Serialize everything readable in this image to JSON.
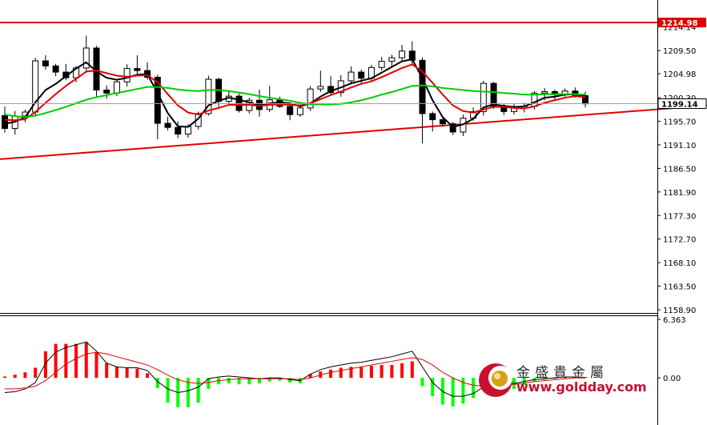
{
  "chart_data": [
    {
      "type": "candlestick",
      "title": "",
      "ylim": [
        1158.9,
        1217.5
      ],
      "y_ticks": [
        "1214.14",
        "1209.50",
        "1204.98",
        "1200.30",
        "1195.70",
        "1191.10",
        "1186.50",
        "1181.90",
        "1177.30",
        "1172.70",
        "1168.10",
        "1163.50",
        "1158.90"
      ],
      "y_tick_values": [
        1214.14,
        1209.5,
        1204.98,
        1200.3,
        1195.7,
        1191.1,
        1186.5,
        1181.9,
        1177.3,
        1172.7,
        1168.1,
        1163.5,
        1158.9
      ],
      "resistance_level": 1214.98,
      "resistance_label": "1214.98",
      "current_price": 1199.14,
      "current_price_label": "1199.14",
      "grid": false,
      "trendline": {
        "start": [
          0,
          1188.3
        ],
        "end": [
          112,
          1205.3
        ],
        "color": "#e00000"
      },
      "candles": [
        [
          1196.8,
          1198.6,
          1193.5,
          1194.3
        ],
        [
          1194.3,
          1197.7,
          1193.1,
          1196.7
        ],
        [
          1196.7,
          1198.0,
          1195.5,
          1197.5
        ],
        [
          1197.5,
          1208.1,
          1196.6,
          1207.5
        ],
        [
          1207.5,
          1208.6,
          1205.8,
          1206.5
        ],
        [
          1206.5,
          1206.9,
          1204.5,
          1205.3
        ],
        [
          1205.3,
          1206.9,
          1203.7,
          1204.2
        ],
        [
          1204.2,
          1206.5,
          1203.3,
          1206.1
        ],
        [
          1206.1,
          1212.4,
          1205.2,
          1210.0
        ],
        [
          1210.0,
          1210.4,
          1200.5,
          1201.8
        ],
        [
          1201.8,
          1202.7,
          1200.1,
          1201.2
        ],
        [
          1201.2,
          1203.8,
          1200.6,
          1203.4
        ],
        [
          1203.4,
          1206.8,
          1202.5,
          1206.0
        ],
        [
          1206.0,
          1208.6,
          1205.0,
          1205.6
        ],
        [
          1205.6,
          1207.2,
          1203.8,
          1204.3
        ],
        [
          1204.3,
          1204.8,
          1192.2,
          1195.3
        ],
        [
          1195.3,
          1196.6,
          1193.9,
          1194.5
        ],
        [
          1194.5,
          1195.7,
          1192.4,
          1193.2
        ],
        [
          1193.2,
          1195.1,
          1192.5,
          1194.7
        ],
        [
          1194.7,
          1197.6,
          1194.1,
          1197.2
        ],
        [
          1197.2,
          1204.6,
          1196.8,
          1203.9
        ],
        [
          1203.9,
          1204.2,
          1198.5,
          1199.6
        ],
        [
          1199.6,
          1201.7,
          1199.1,
          1200.6
        ],
        [
          1200.6,
          1201.1,
          1197.4,
          1197.8
        ],
        [
          1197.8,
          1200.3,
          1197.2,
          1199.8
        ],
        [
          1199.8,
          1201.9,
          1196.6,
          1198.0
        ],
        [
          1198.0,
          1202.6,
          1197.5,
          1199.9
        ],
        [
          1199.9,
          1200.5,
          1198.3,
          1198.6
        ],
        [
          1198.6,
          1199.4,
          1195.9,
          1197.0
        ],
        [
          1197.0,
          1198.7,
          1196.6,
          1198.3
        ],
        [
          1198.3,
          1202.6,
          1197.7,
          1202.0
        ],
        [
          1202.0,
          1205.6,
          1201.4,
          1202.5
        ],
        [
          1202.5,
          1204.5,
          1200.7,
          1201.3
        ],
        [
          1201.3,
          1204.7,
          1200.5,
          1203.6
        ],
        [
          1203.6,
          1206.4,
          1203.0,
          1205.3
        ],
        [
          1205.3,
          1205.8,
          1203.2,
          1204.1
        ],
        [
          1204.1,
          1206.7,
          1203.6,
          1206.2
        ],
        [
          1206.2,
          1208.3,
          1205.6,
          1207.4
        ],
        [
          1207.4,
          1208.7,
          1206.2,
          1208.1
        ],
        [
          1208.1,
          1210.6,
          1207.4,
          1209.4
        ],
        [
          1209.4,
          1211.3,
          1206.8,
          1207.6
        ],
        [
          1207.6,
          1208.2,
          1191.4,
          1197.2
        ],
        [
          1197.2,
          1197.6,
          1193.7,
          1196.0
        ],
        [
          1196.0,
          1196.6,
          1194.6,
          1195.2
        ],
        [
          1195.2,
          1195.6,
          1193.0,
          1193.6
        ],
        [
          1193.6,
          1197.0,
          1192.8,
          1196.3
        ],
        [
          1196.3,
          1198.4,
          1195.8,
          1197.6
        ],
        [
          1197.6,
          1203.6,
          1196.8,
          1203.1
        ],
        [
          1203.1,
          1203.4,
          1198.1,
          1198.5
        ],
        [
          1198.5,
          1199.2,
          1196.9,
          1197.6
        ],
        [
          1197.6,
          1199.1,
          1197.0,
          1198.3
        ],
        [
          1198.3,
          1199.3,
          1197.4,
          1198.6
        ],
        [
          1198.6,
          1201.6,
          1198.0,
          1201.2
        ],
        [
          1201.2,
          1202.2,
          1199.8,
          1201.5
        ],
        [
          1201.5,
          1201.9,
          1199.7,
          1200.9
        ],
        [
          1200.9,
          1202.1,
          1200.5,
          1201.6
        ],
        [
          1201.6,
          1202.3,
          1200.3,
          1200.7
        ],
        [
          1200.7,
          1201.5,
          1198.4,
          1199.1
        ]
      ],
      "moving_averages": [
        {
          "color": "#000000",
          "values": [
            1195.2,
            1195.6,
            1196.5,
            1199.4,
            1201.8,
            1203.0,
            1204.5,
            1206.0,
            1207.2,
            1205.4,
            1204.2,
            1203.8,
            1204.2,
            1204.8,
            1204.9,
            1201.2,
            1197.3,
            1194.7,
            1194.6,
            1196.2,
            1198.8,
            1199.7,
            1200.3,
            1199.9,
            1199.4,
            1198.8,
            1199.2,
            1199.4,
            1199.2,
            1198.6,
            1199.2,
            1200.5,
            1201.6,
            1202.3,
            1203.1,
            1203.6,
            1204.1,
            1205.2,
            1206.3,
            1207.4,
            1207.8,
            1204.1,
            1199.8,
            1196.5,
            1194.6,
            1195.1,
            1196.2,
            1198.4,
            1199.0,
            1198.7,
            1198.5,
            1198.6,
            1199.4,
            1200.3,
            1200.5,
            1200.9,
            1201.0,
            1200.4
          ]
        },
        {
          "color": "#e00000",
          "values": [
            1196.0,
            1195.9,
            1196.1,
            1197.5,
            1199.3,
            1201.0,
            1202.6,
            1204.0,
            1205.4,
            1205.6,
            1205.1,
            1204.6,
            1204.4,
            1204.6,
            1204.7,
            1203.3,
            1201.0,
            1198.8,
            1197.4,
            1197.0,
            1197.8,
            1198.3,
            1198.9,
            1198.9,
            1198.9,
            1198.7,
            1198.9,
            1199.0,
            1198.9,
            1198.8,
            1199.2,
            1200.0,
            1200.8,
            1201.5,
            1202.3,
            1203.0,
            1203.5,
            1204.3,
            1205.2,
            1206.1,
            1206.8,
            1205.4,
            1203.2,
            1200.9,
            1198.8,
            1197.7,
            1197.4,
            1198.0,
            1198.5,
            1198.5,
            1198.3,
            1198.2,
            1198.6,
            1199.3,
            1199.8,
            1200.3,
            1200.6,
            1200.4
          ]
        },
        {
          "color": "#00cc00",
          "values": [
            1197.0,
            1196.7,
            1196.5,
            1196.8,
            1197.3,
            1197.9,
            1198.5,
            1199.2,
            1199.9,
            1200.4,
            1200.8,
            1201.2,
            1201.6,
            1202.0,
            1202.4,
            1202.4,
            1202.2,
            1201.9,
            1201.7,
            1201.6,
            1201.8,
            1201.8,
            1201.6,
            1201.3,
            1201.0,
            1200.6,
            1200.3,
            1200.0,
            1199.7,
            1199.3,
            1199.0,
            1199.0,
            1199.0,
            1199.1,
            1199.4,
            1199.8,
            1200.3,
            1200.9,
            1201.4,
            1202.0,
            1202.6,
            1202.7,
            1202.5,
            1202.2,
            1202.0,
            1201.8,
            1201.6,
            1201.5,
            1201.4,
            1201.2,
            1201.1,
            1200.9,
            1200.9,
            1201.0,
            1201.0,
            1201.0,
            1201.0,
            1200.9
          ]
        }
      ]
    },
    {
      "type": "histogram",
      "title": "",
      "ylim": [
        -4.6,
        6.363
      ],
      "y_ticks": [
        "6.363",
        "0.00"
      ],
      "y_tick_values": [
        6.363,
        0.0
      ],
      "bar_colors": {
        "positive": "#ff0000",
        "negative": "#00ff00"
      },
      "histogram": [
        0.15,
        0.35,
        0.6,
        1.1,
        2.9,
        3.7,
        3.7,
        3.7,
        3.9,
        2.8,
        1.6,
        1.2,
        1.1,
        1.0,
        0.5,
        -1.1,
        -2.7,
        -3.2,
        -3.2,
        -2.7,
        -1.2,
        -0.7,
        -0.6,
        -0.7,
        -0.7,
        -0.6,
        -0.4,
        -0.3,
        -0.5,
        -0.6,
        0.4,
        0.7,
        0.9,
        1.1,
        1.2,
        1.2,
        1.3,
        1.4,
        1.4,
        1.6,
        1.8,
        -0.9,
        -2.0,
        -2.9,
        -3.1,
        -2.8,
        -2.2,
        -1.4,
        -1.4,
        -1.6,
        -1.2,
        -0.8,
        -0.4,
        -0.2,
        0.0,
        0.1,
        0.1,
        0.1
      ],
      "macd_line": {
        "color": "#000000",
        "values": [
          -1.6,
          -1.5,
          -1.2,
          -0.5,
          1.6,
          2.8,
          3.3,
          3.6,
          3.9,
          2.9,
          1.6,
          1.2,
          1.1,
          1.1,
          0.8,
          -0.4,
          -1.2,
          -1.6,
          -1.4,
          -1.0,
          -0.1,
          0.1,
          0.2,
          0.1,
          0.0,
          -0.1,
          0.0,
          0.0,
          -0.2,
          -0.3,
          0.4,
          0.9,
          1.2,
          1.4,
          1.6,
          1.7,
          1.9,
          2.1,
          2.3,
          2.6,
          2.9,
          1.2,
          -0.5,
          -1.5,
          -2.0,
          -2.0,
          -1.7,
          -1.0,
          -0.8,
          -0.7,
          -0.6,
          -0.4,
          -0.2,
          -0.1,
          0.0,
          0.1,
          0.1,
          0.0
        ]
      },
      "signal_line": {
        "color": "#e00000",
        "values": [
          -1.2,
          -1.2,
          -1.1,
          -0.9,
          -0.3,
          0.6,
          1.5,
          2.1,
          2.6,
          2.8,
          2.6,
          2.3,
          2.0,
          1.7,
          1.4,
          0.9,
          0.3,
          -0.2,
          -0.5,
          -0.6,
          -0.5,
          -0.3,
          -0.2,
          -0.1,
          -0.1,
          -0.1,
          -0.1,
          -0.1,
          -0.1,
          -0.2,
          0.0,
          0.3,
          0.6,
          0.8,
          1.0,
          1.2,
          1.4,
          1.6,
          1.8,
          2.0,
          2.2,
          2.0,
          1.4,
          0.6,
          0.0,
          -0.5,
          -0.8,
          -0.9,
          -0.9,
          -0.8,
          -0.7,
          -0.6,
          -0.4,
          -0.3,
          -0.2,
          -0.1,
          0.0,
          0.0
        ]
      }
    }
  ],
  "watermark": {
    "chinese": "金盛貴金屬",
    "url": "www.goldday.com"
  },
  "colors": {
    "axis": "#000000",
    "ref_gray": "#a0a0a0",
    "tag_red": "#e00000",
    "tag_white": "#ffffff"
  }
}
